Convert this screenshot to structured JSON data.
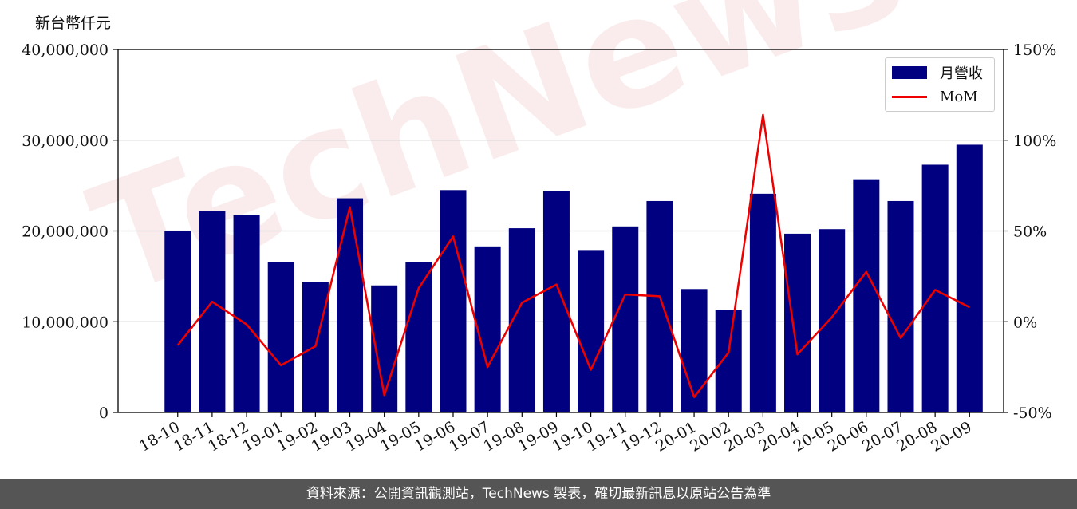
{
  "unit_label": "新台幣仟元",
  "footer_text": "資料來源：公開資訊觀測站，TechNews 製表，確切最新訊息以原站公告為準",
  "watermark": "TechNews",
  "chart_data": {
    "type": "bar+line",
    "categories": [
      "18-10",
      "18-11",
      "18-12",
      "19-01",
      "19-02",
      "19-03",
      "19-04",
      "19-05",
      "19-06",
      "19-07",
      "19-08",
      "19-09",
      "19-10",
      "19-11",
      "19-12",
      "20-01",
      "20-02",
      "20-03",
      "20-04",
      "20-05",
      "20-06",
      "20-07",
      "20-08",
      "20-09"
    ],
    "series": [
      {
        "name": "月營收",
        "type": "bar",
        "axis": "left",
        "color": "#000080",
        "values": [
          20000000,
          22200000,
          21800000,
          16600000,
          14400000,
          23600000,
          14000000,
          16600000,
          24500000,
          18300000,
          20300000,
          24400000,
          17900000,
          20500000,
          23300000,
          13600000,
          11300000,
          24100000,
          19700000,
          20200000,
          25700000,
          23300000,
          27300000,
          29500000
        ]
      },
      {
        "name": "MoM",
        "type": "line",
        "axis": "right",
        "color": "#ee0000",
        "values": [
          -13,
          11,
          -1.5,
          -24,
          -13.5,
          63,
          -40.5,
          18.5,
          47,
          -25,
          10.5,
          20.5,
          -26.5,
          15,
          14,
          -41.5,
          -17,
          114,
          -18,
          2.5,
          27.5,
          -9,
          17.5,
          8
        ]
      }
    ],
    "y_left": {
      "ylim": [
        0,
        40000000
      ],
      "ticks": [
        "0",
        "10,000,000",
        "20,000,000",
        "30,000,000",
        "40,000,000"
      ]
    },
    "y_right": {
      "ylim": [
        -50,
        150
      ],
      "ticks": [
        "-50%",
        "0%",
        "50%",
        "100%",
        "150%"
      ]
    },
    "grid": true,
    "legend_position": "top-right"
  }
}
